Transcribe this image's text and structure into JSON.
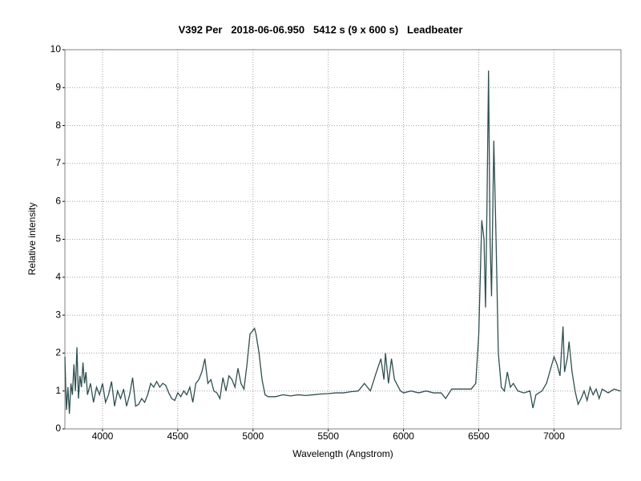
{
  "chart_data": {
    "type": "line",
    "title": "V392 Per   2018-06-06.950   5412 s (9 x 600 s)   Leadbeater",
    "x_label": "Wavelength (Angstrom)",
    "y_label": "Relative intensity",
    "color": "#2f4f4f",
    "grid": true,
    "xlim": [
      3750,
      7445
    ],
    "ylim": [
      0,
      10
    ],
    "xticks": [
      4000,
      4500,
      5000,
      5500,
      6000,
      6500,
      7000
    ],
    "yticks": [
      0,
      1,
      2,
      3,
      4,
      5,
      6,
      7,
      8,
      9,
      10
    ],
    "x": [
      3750,
      3760,
      3770,
      3780,
      3790,
      3800,
      3810,
      3820,
      3830,
      3840,
      3850,
      3860,
      3870,
      3880,
      3890,
      3900,
      3920,
      3940,
      3960,
      3980,
      4000,
      4020,
      4040,
      4060,
      4080,
      4100,
      4120,
      4140,
      4160,
      4180,
      4200,
      4220,
      4240,
      4260,
      4280,
      4300,
      4320,
      4340,
      4360,
      4380,
      4400,
      4420,
      4440,
      4460,
      4480,
      4500,
      4520,
      4540,
      4560,
      4580,
      4600,
      4620,
      4640,
      4660,
      4680,
      4700,
      4720,
      4740,
      4760,
      4780,
      4800,
      4820,
      4840,
      4860,
      4880,
      4900,
      4920,
      4940,
      4960,
      4980,
      5000,
      5010,
      5020,
      5040,
      5060,
      5080,
      5100,
      5150,
      5200,
      5250,
      5300,
      5350,
      5400,
      5450,
      5500,
      5550,
      5600,
      5650,
      5700,
      5740,
      5780,
      5820,
      5850,
      5870,
      5880,
      5900,
      5920,
      5940,
      5980,
      6000,
      6050,
      6100,
      6150,
      6200,
      6250,
      6280,
      6320,
      6400,
      6450,
      6480,
      6500,
      6520,
      6535,
      6545,
      6555,
      6565,
      6575,
      6585,
      6600,
      6615,
      6630,
      6650,
      6670,
      6690,
      6710,
      6730,
      6760,
      6800,
      6840,
      6860,
      6880,
      6920,
      6950,
      7000,
      7020,
      7040,
      7060,
      7070,
      7090,
      7100,
      7120,
      7140,
      7160,
      7180,
      7200,
      7220,
      7240,
      7260,
      7280,
      7300,
      7320,
      7360,
      7400,
      7440
    ],
    "values": [
      1.9,
      0.5,
      1.1,
      0.4,
      1.2,
      0.9,
      1.7,
      1.0,
      2.15,
      0.8,
      1.4,
      1.1,
      1.75,
      1.2,
      1.5,
      0.9,
      1.2,
      0.7,
      1.1,
      0.9,
      1.2,
      0.7,
      0.9,
      1.25,
      0.6,
      1.0,
      0.8,
      1.05,
      0.6,
      0.9,
      1.35,
      0.6,
      0.65,
      0.8,
      0.7,
      0.9,
      1.2,
      1.1,
      1.25,
      1.1,
      1.2,
      1.15,
      0.95,
      0.8,
      0.75,
      0.95,
      0.85,
      1.0,
      0.9,
      1.1,
      0.7,
      1.2,
      1.3,
      1.5,
      1.85,
      1.2,
      1.3,
      1.0,
      0.95,
      0.8,
      1.35,
      1.0,
      1.4,
      1.3,
      1.1,
      1.6,
      1.2,
      1.05,
      1.7,
      2.5,
      2.6,
      2.65,
      2.5,
      2.0,
      1.3,
      0.9,
      0.85,
      0.85,
      0.9,
      0.87,
      0.9,
      0.88,
      0.9,
      0.92,
      0.93,
      0.95,
      0.95,
      0.98,
      1.0,
      1.2,
      1.0,
      1.5,
      1.85,
      1.3,
      2.0,
      1.2,
      1.85,
      1.3,
      1.0,
      0.95,
      1.0,
      0.95,
      1.0,
      0.95,
      0.95,
      0.8,
      1.05,
      1.05,
      1.05,
      1.2,
      2.5,
      5.5,
      5.0,
      3.2,
      6.0,
      9.45,
      5.0,
      3.5,
      7.6,
      5.0,
      2.0,
      1.1,
      1.0,
      1.5,
      1.1,
      1.2,
      1.0,
      0.95,
      1.0,
      0.55,
      0.9,
      1.0,
      1.2,
      1.9,
      1.7,
      1.4,
      2.7,
      1.5,
      1.9,
      2.3,
      1.5,
      1.0,
      0.65,
      0.8,
      1.0,
      0.75,
      1.1,
      0.9,
      1.05,
      0.8,
      1.05,
      0.95,
      1.05,
      1.0
    ]
  }
}
